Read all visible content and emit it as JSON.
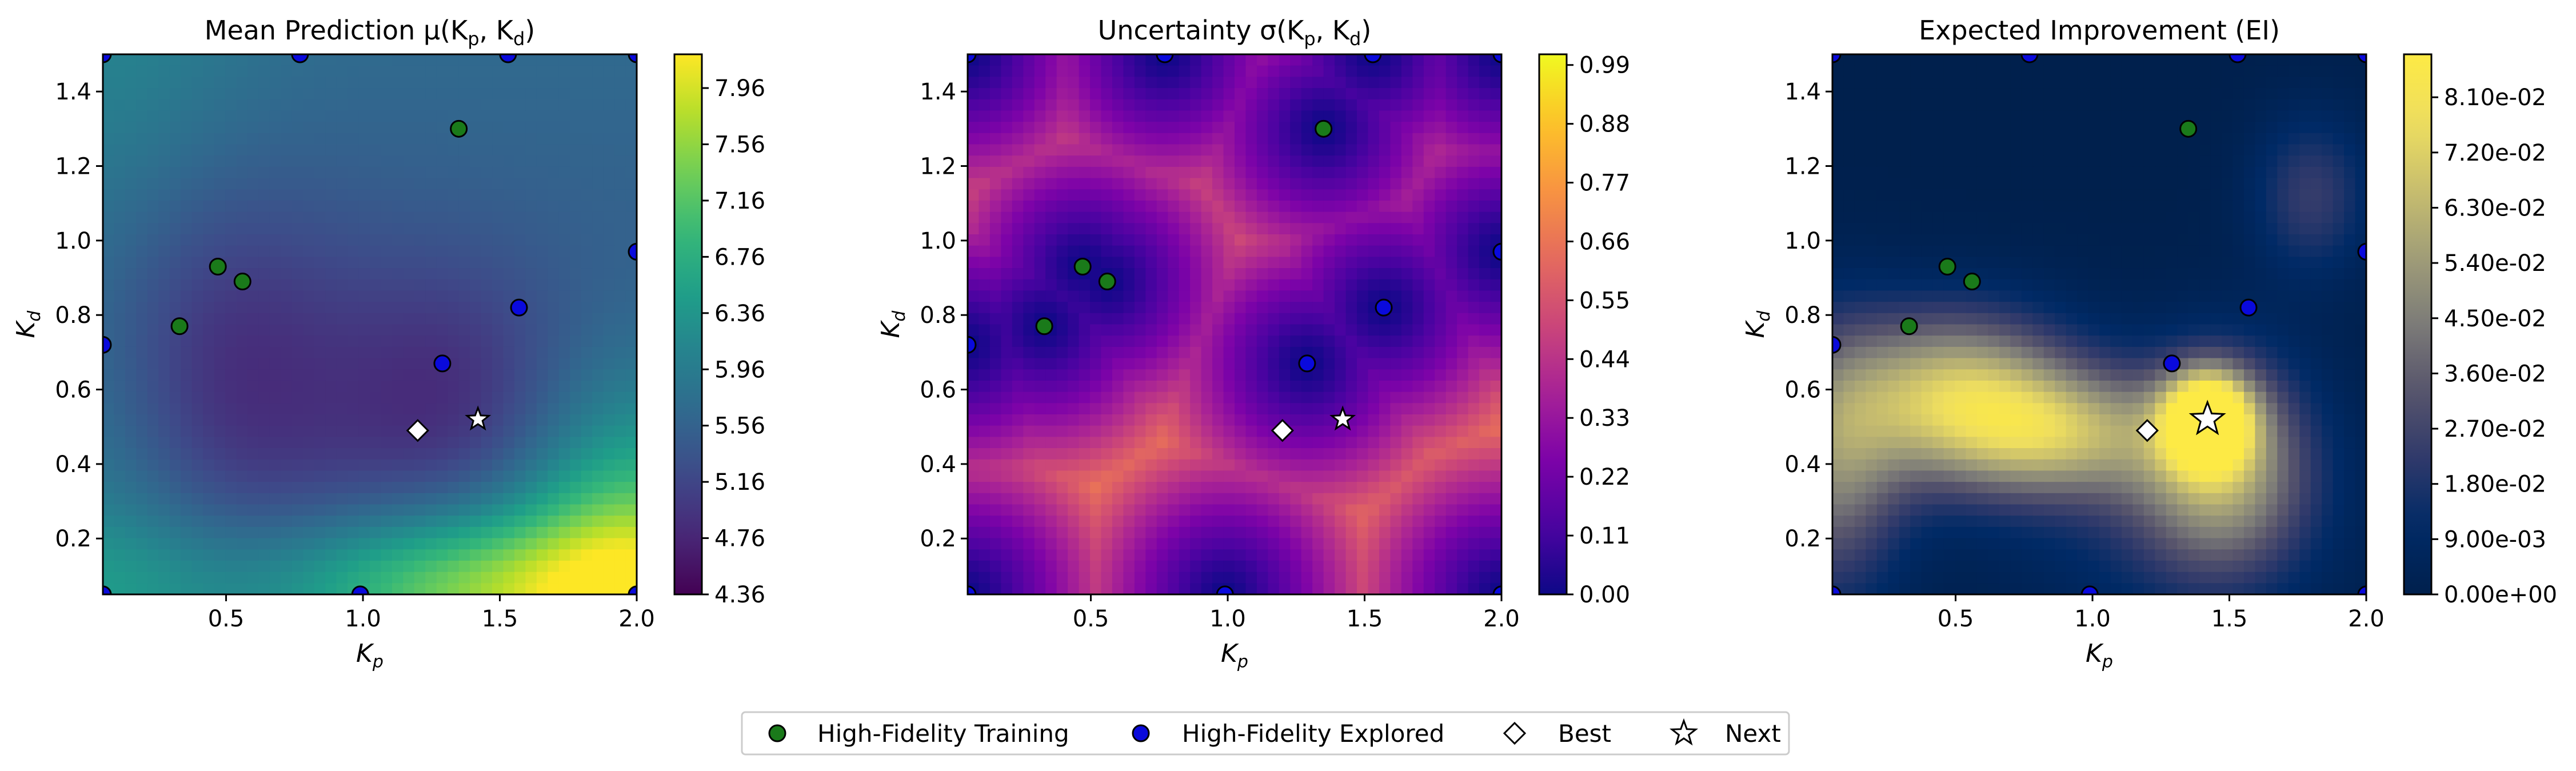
{
  "chart_data": [
    {
      "type": "heatmap",
      "title": "Mean Prediction μ(Kp, Kd)",
      "title_parts": {
        "prefix": "Mean Prediction μ(K",
        "a": "p",
        "mid": ", K",
        "b": "d",
        "suffix": ")"
      },
      "xlabel": {
        "base": "K",
        "sub": "p"
      },
      "ylabel": {
        "base": "K",
        "sub": "d"
      },
      "xlim": [
        0.05,
        2.0
      ],
      "ylim": [
        0.05,
        1.5
      ],
      "xticks": [
        "0.5",
        "1.0",
        "1.5",
        "2.0"
      ],
      "yticks": [
        "0.2",
        "0.4",
        "0.6",
        "0.8",
        "1.0",
        "1.2",
        "1.4"
      ],
      "colormap": "viridis",
      "colorbar_range": [
        4.36,
        8.2
      ],
      "colorbar_ticks": [
        "4.36",
        "4.76",
        "5.16",
        "5.56",
        "5.96",
        "6.36",
        "6.76",
        "7.16",
        "7.56",
        "7.96"
      ]
    },
    {
      "type": "heatmap",
      "title": "Uncertainty σ(Kp, Kd)",
      "title_parts": {
        "prefix": "Uncertainty σ(K",
        "a": "p",
        "mid": ", K",
        "b": "d",
        "suffix": ")"
      },
      "xlabel": {
        "base": "K",
        "sub": "p"
      },
      "ylabel": {
        "base": "K",
        "sub": "d"
      },
      "xlim": [
        0.05,
        2.0
      ],
      "ylim": [
        0.05,
        1.5
      ],
      "xticks": [
        "0.5",
        "1.0",
        "1.5",
        "2.0"
      ],
      "yticks": [
        "0.2",
        "0.4",
        "0.6",
        "0.8",
        "1.0",
        "1.2",
        "1.4"
      ],
      "colormap": "plasma",
      "colorbar_range": [
        0.0,
        1.01
      ],
      "colorbar_ticks": [
        "0.00",
        "0.11",
        "0.22",
        "0.33",
        "0.44",
        "0.55",
        "0.66",
        "0.77",
        "0.88",
        "0.99"
      ]
    },
    {
      "type": "heatmap",
      "title": "Expected Improvement (EI)",
      "title_parts": {
        "prefix": "Expected Improvement (EI)",
        "a": "",
        "mid": "",
        "b": "",
        "suffix": ""
      },
      "xlabel": {
        "base": "K",
        "sub": "p"
      },
      "ylabel": {
        "base": "K",
        "sub": "d"
      },
      "xlim": [
        0.05,
        2.0
      ],
      "ylim": [
        0.05,
        1.5
      ],
      "xticks": [
        "0.5",
        "1.0",
        "1.5",
        "2.0"
      ],
      "yticks": [
        "0.2",
        "0.4",
        "0.6",
        "0.8",
        "1.0",
        "1.2",
        "1.4"
      ],
      "colormap": "cividis",
      "colorbar_range": [
        0.0,
        0.088
      ],
      "colorbar_ticks": [
        "0.00e+00",
        "9.00e-03",
        "1.80e-02",
        "2.70e-02",
        "3.60e-02",
        "4.50e-02",
        "5.40e-02",
        "6.30e-02",
        "7.20e-02",
        "8.10e-02"
      ]
    }
  ],
  "points": {
    "training": [
      [
        1.35,
        1.3
      ],
      [
        0.47,
        0.93
      ],
      [
        0.56,
        0.89
      ],
      [
        0.33,
        0.77
      ]
    ],
    "explored": [
      [
        0.05,
        1.5
      ],
      [
        0.77,
        1.5
      ],
      [
        1.53,
        1.5
      ],
      [
        2.0,
        1.5
      ],
      [
        2.0,
        0.97
      ],
      [
        1.57,
        0.82
      ],
      [
        1.29,
        0.67
      ],
      [
        0.05,
        0.72
      ],
      [
        0.05,
        0.05
      ],
      [
        0.99,
        0.05
      ],
      [
        2.0,
        0.05
      ]
    ],
    "best": [
      1.2,
      0.49
    ],
    "next": [
      1.42,
      0.52
    ]
  },
  "legend": {
    "training": "High-Fidelity Training",
    "explored": "High-Fidelity Explored",
    "best": "Best",
    "next": "Next"
  },
  "colors": {
    "training": "#1a7a1a",
    "explored": "#0a0adc"
  }
}
